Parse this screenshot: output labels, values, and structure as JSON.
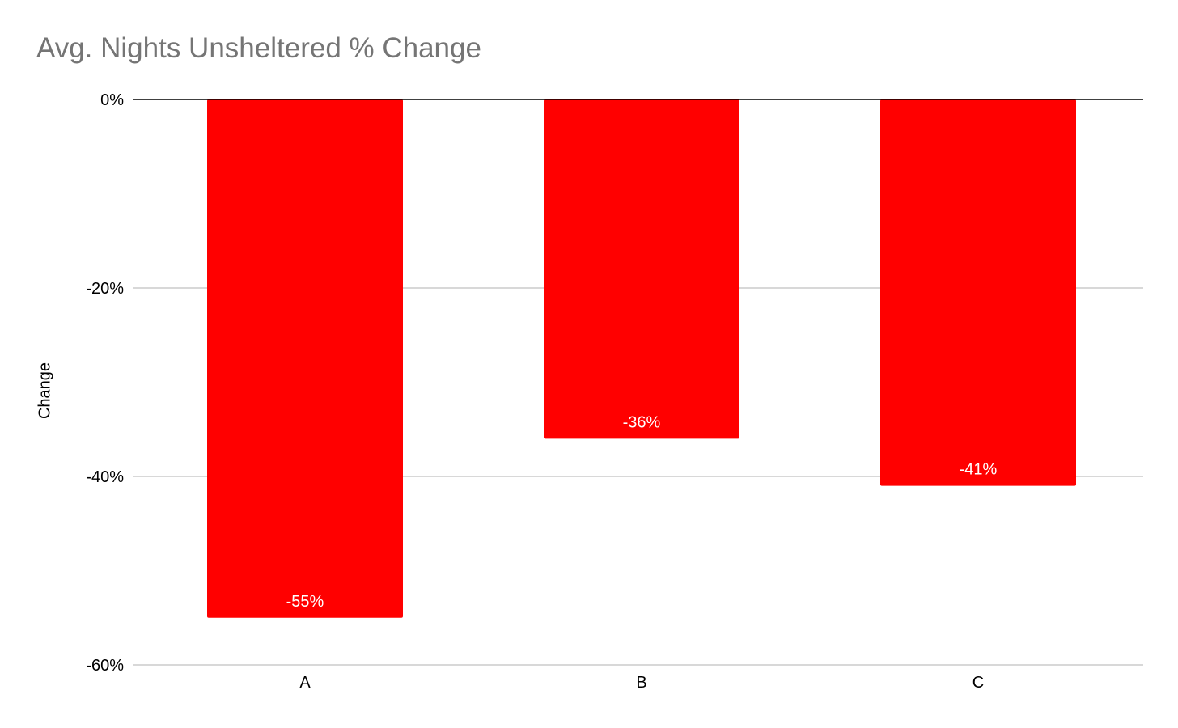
{
  "chart_data": {
    "type": "bar",
    "title": "Avg. Nights Unsheltered % Change",
    "xlabel": "",
    "ylabel": "Change",
    "categories": [
      "A",
      "B",
      "C"
    ],
    "values": [
      -55,
      -36,
      -41
    ],
    "data_labels": [
      "-55%",
      "-36%",
      "-41%"
    ],
    "ylim": [
      -60,
      0
    ],
    "yticks": [
      0,
      -20,
      -40,
      -60
    ],
    "ytick_labels": [
      "0%",
      "-20%",
      "-40%",
      "-60%"
    ],
    "grid": true,
    "legend": "none",
    "colors": {
      "bar": "#ff0000",
      "grid": "#cccccc",
      "zero_line": "#000000",
      "title": "#757575"
    }
  }
}
